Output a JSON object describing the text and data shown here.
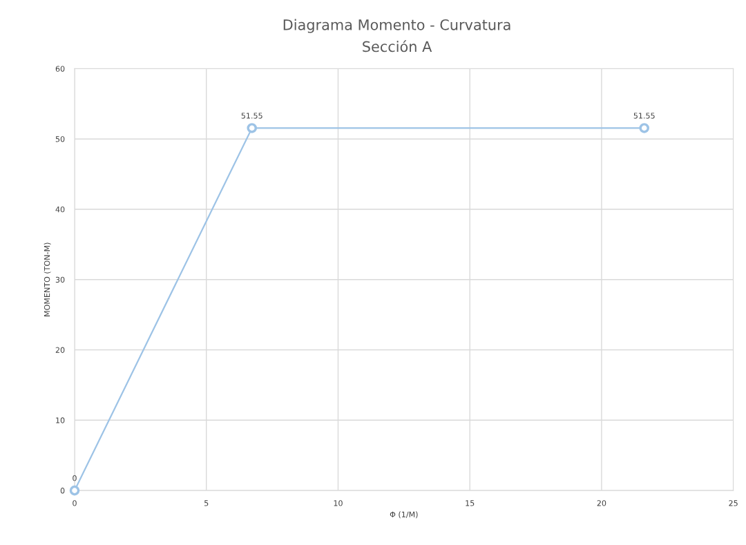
{
  "chart_data": {
    "type": "line",
    "title": "Diagrama Momento - Curvatura",
    "subtitle": "Sección A",
    "xlabel": "Φ (1/M)",
    "ylabel": "MOMENTO (TON-M)",
    "series": [
      {
        "color": "#9dc3e6",
        "x": [
          0,
          6.73,
          21.62
        ],
        "values": [
          0,
          51.55,
          51.55
        ]
      }
    ],
    "data_labels": true,
    "marker": "circle",
    "line_style": "solid",
    "grid": true,
    "xlim": [
      0,
      25
    ],
    "xticks": [
      0,
      5,
      10,
      15,
      20,
      25
    ],
    "ylim": [
      0,
      60
    ],
    "yticks": [
      0,
      10,
      20,
      30,
      40,
      50,
      60
    ]
  }
}
